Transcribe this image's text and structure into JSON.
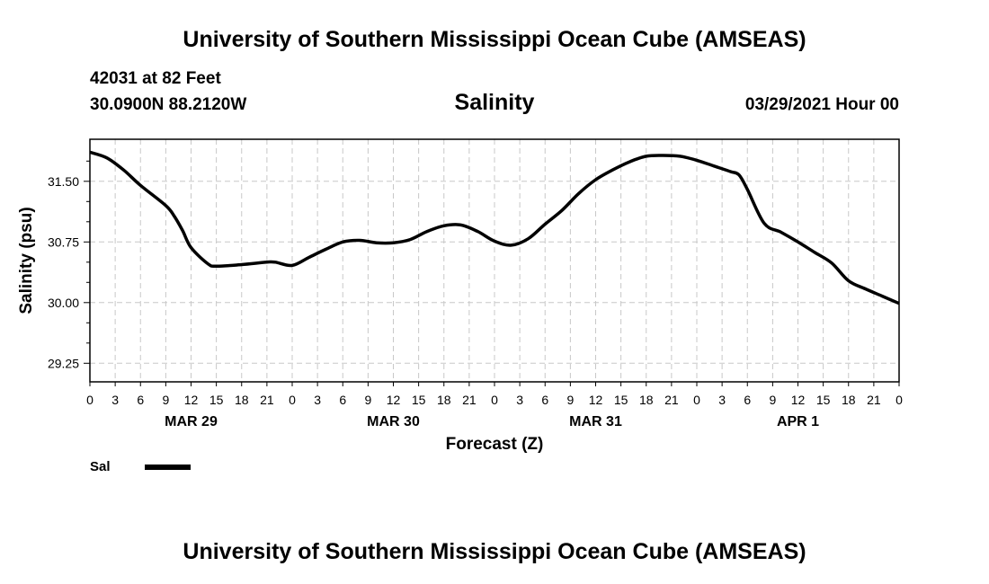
{
  "header": {
    "title": "University of Southern Mississippi Ocean Cube (AMSEAS)",
    "station": "42031 at 82 Feet",
    "coordinates": "30.0900N  88.2120W",
    "variable": "Salinity",
    "timestamp": "03/29/2021 Hour 00"
  },
  "footer": {
    "title": "University of Southern Mississippi Ocean Cube (AMSEAS)"
  },
  "chart_data": {
    "type": "line",
    "title": "Salinity",
    "xlabel": "Forecast (Z)",
    "ylabel": "Salinity (psu)",
    "xlim": [
      0,
      96
    ],
    "ylim": [
      29.02,
      32.02
    ],
    "grid": true,
    "x_ticks": [
      0,
      3,
      6,
      9,
      12,
      15,
      18,
      21,
      24,
      27,
      30,
      33,
      36,
      39,
      42,
      45,
      48,
      51,
      54,
      57,
      60,
      63,
      66,
      69,
      72,
      75,
      78,
      81,
      84,
      87,
      90,
      93,
      96
    ],
    "x_tick_labels": [
      "0",
      "3",
      "6",
      "9",
      "12",
      "15",
      "18",
      "21",
      "0",
      "3",
      "6",
      "9",
      "12",
      "15",
      "18",
      "21",
      "0",
      "3",
      "6",
      "9",
      "12",
      "15",
      "18",
      "21",
      "0",
      "3",
      "6",
      "9",
      "12",
      "15",
      "18",
      "21",
      "0"
    ],
    "y_ticks": [
      29.25,
      30.0,
      30.75,
      31.5
    ],
    "y_tick_labels": [
      "29.25",
      "30.00",
      "30.75",
      "31.50"
    ],
    "y_minor_ticks": [
      29.5,
      29.75,
      30.25,
      30.5,
      31.0,
      31.25,
      31.75
    ],
    "date_labels": [
      {
        "hour": 12,
        "label": "MAR 29"
      },
      {
        "hour": 36,
        "label": "MAR 30"
      },
      {
        "hour": 60,
        "label": "MAR 31"
      },
      {
        "hour": 84,
        "label": "APR 1"
      }
    ],
    "legend": {
      "placement": "bottom-left",
      "entries": [
        {
          "name": "Sal",
          "color": "#000000"
        }
      ]
    },
    "series": [
      {
        "name": "Sal",
        "color": "#000000",
        "x": [
          0,
          2,
          4,
          6,
          9,
          10,
          11,
          12,
          14,
          15,
          18,
          21,
          22,
          24,
          26,
          28,
          30,
          32,
          34,
          36,
          38,
          40,
          42,
          44,
          46,
          48,
          50,
          52,
          54,
          56,
          58,
          60,
          62,
          64,
          66,
          68,
          70,
          72,
          74,
          76,
          77,
          78,
          80,
          82,
          84,
          86,
          88,
          90,
          92,
          94,
          96
        ],
        "y": [
          31.86,
          31.79,
          31.64,
          31.45,
          31.2,
          31.07,
          30.89,
          30.68,
          30.48,
          30.45,
          30.47,
          30.5,
          30.5,
          30.46,
          30.56,
          30.66,
          30.75,
          30.77,
          30.74,
          30.74,
          30.78,
          30.88,
          30.95,
          30.96,
          30.88,
          30.76,
          30.71,
          30.79,
          30.97,
          31.14,
          31.35,
          31.52,
          31.64,
          31.74,
          31.81,
          31.82,
          31.81,
          31.76,
          31.69,
          31.62,
          31.58,
          31.4,
          30.98,
          30.87,
          30.75,
          30.62,
          30.49,
          30.27,
          30.17,
          30.08,
          29.99
        ]
      }
    ]
  }
}
